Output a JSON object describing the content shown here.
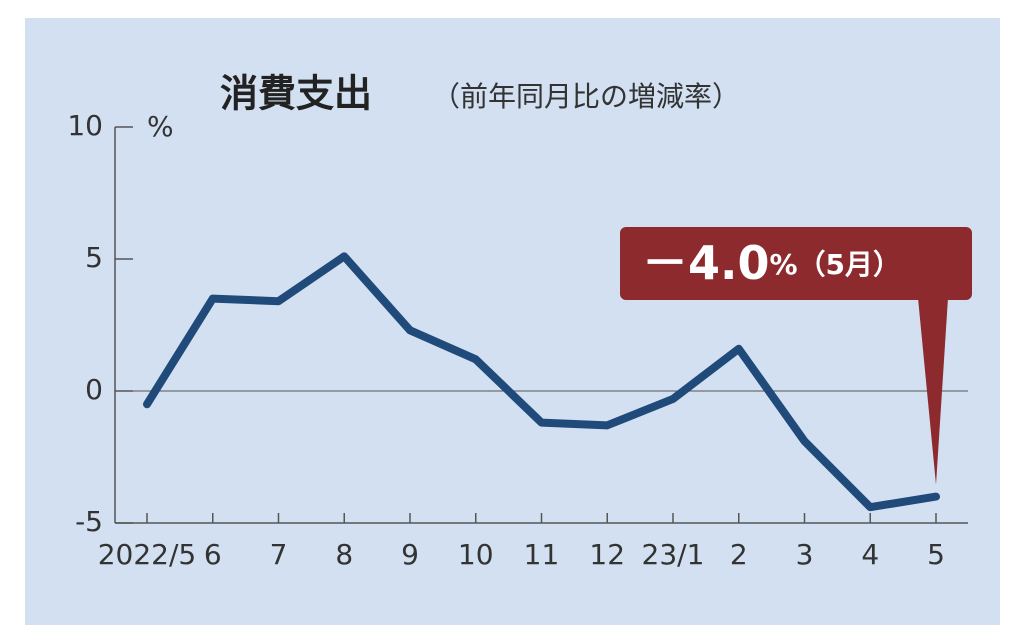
{
  "chart_data": {
    "type": "line",
    "title": "消費支出",
    "subtitle": "（前年同月比の増減率）",
    "y_unit": "%",
    "annotation": "－4.0",
    "annotation_note": "%（5月）",
    "categories": [
      "2022/5",
      "6",
      "7",
      "8",
      "9",
      "10",
      "11",
      "12",
      "23/1",
      "2",
      "3",
      "4",
      "5"
    ],
    "series": [
      {
        "color": "#1f4a7a",
        "values": [
          -0.5,
          3.5,
          3.4,
          5.1,
          2.3,
          1.2,
          -1.2,
          -1.3,
          -0.3,
          1.6,
          -1.9,
          -4.4,
          -4.0
        ]
      }
    ],
    "ylim": [
      -5,
      10
    ],
    "yticks": [
      -5,
      0,
      5,
      10
    ],
    "grid": false
  }
}
